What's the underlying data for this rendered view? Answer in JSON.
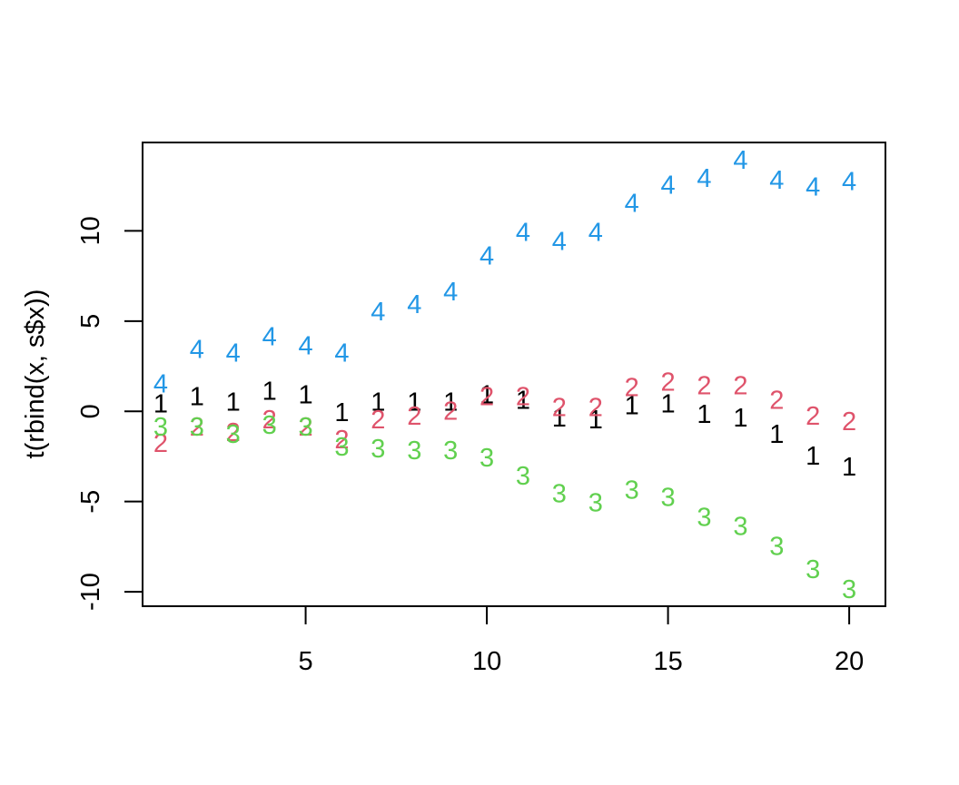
{
  "chart_data": {
    "type": "scatter",
    "title": "",
    "xlabel": "",
    "ylabel": "t(rbind(x, s$x))",
    "xlim": [
      0.5,
      21
    ],
    "ylim": [
      -10.8,
      14.9
    ],
    "xticks": [
      5,
      10,
      15,
      20
    ],
    "yticks": [
      -10,
      -5,
      0,
      5,
      10
    ],
    "xtick_labels": [
      "5",
      "10",
      "15",
      "20"
    ],
    "ytick_labels": [
      "-10",
      "-5",
      "0",
      "5",
      "10"
    ],
    "grid": false,
    "legend": "none",
    "x": [
      1,
      2,
      3,
      4,
      5,
      6,
      7,
      8,
      9,
      10,
      11,
      12,
      13,
      14,
      15,
      16,
      17,
      18,
      19,
      20
    ],
    "series": [
      {
        "symbol": "1",
        "color": "#000000",
        "values": [
          0.4,
          0.8,
          0.5,
          1.1,
          0.9,
          -0.1,
          0.5,
          0.5,
          0.5,
          0.9,
          0.6,
          -0.4,
          -0.5,
          0.3,
          0.4,
          -0.2,
          -0.4,
          -1.3,
          -2.5,
          -3.1
        ]
      },
      {
        "symbol": "2",
        "color": "#DF536B",
        "values": [
          -1.8,
          -0.9,
          -1.2,
          -0.5,
          -0.9,
          -1.6,
          -0.5,
          -0.3,
          0.0,
          0.8,
          0.8,
          0.2,
          0.2,
          1.3,
          1.6,
          1.4,
          1.4,
          0.6,
          -0.3,
          -0.6
        ]
      },
      {
        "symbol": "3",
        "color": "#61D04F",
        "values": [
          -0.9,
          -0.9,
          -1.3,
          -0.8,
          -0.9,
          -2.0,
          -2.1,
          -2.2,
          -2.2,
          -2.6,
          -3.6,
          -4.6,
          -5.1,
          -4.4,
          -4.8,
          -5.9,
          -6.4,
          -7.5,
          -8.8,
          -9.9
        ]
      },
      {
        "symbol": "4",
        "color": "#2297E6",
        "values": [
          1.5,
          3.4,
          3.2,
          4.1,
          3.6,
          3.2,
          5.5,
          5.9,
          6.6,
          8.6,
          9.9,
          9.4,
          9.9,
          11.5,
          12.5,
          12.9,
          13.9,
          12.8,
          12.4,
          12.7
        ]
      }
    ]
  }
}
